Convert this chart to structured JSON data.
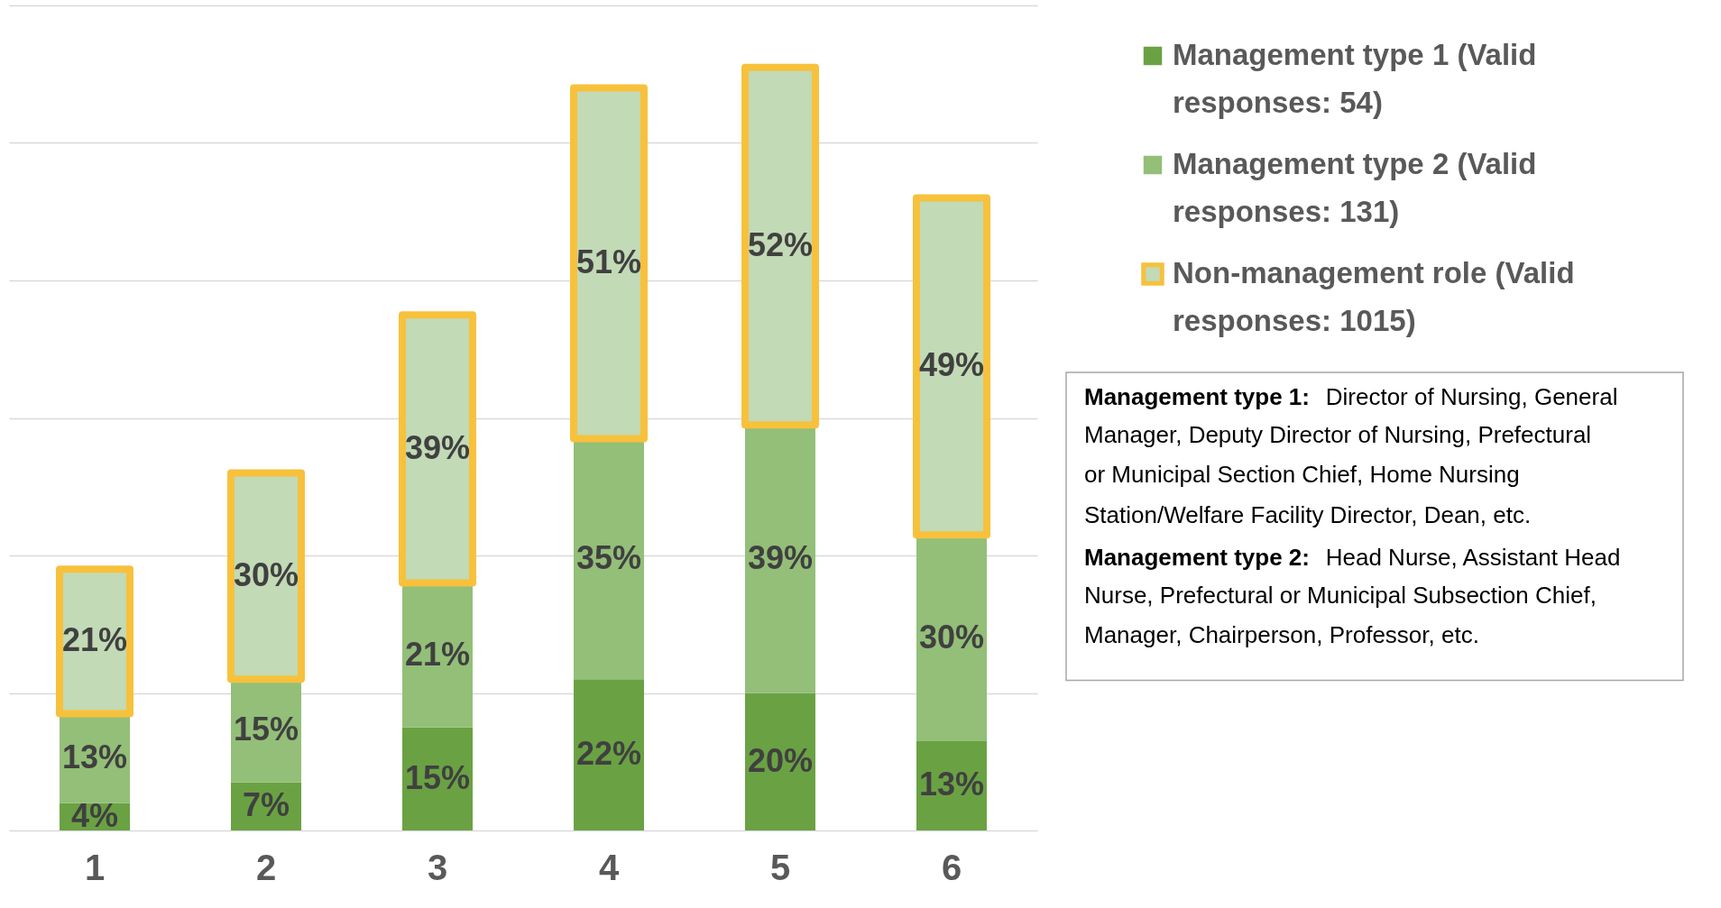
{
  "chart_data": {
    "type": "bar",
    "stacked": true,
    "categories": [
      "1",
      "2",
      "3",
      "4",
      "5",
      "6"
    ],
    "series": [
      {
        "name": "Management type 1 (Valid responses: 54)",
        "color": "#6aa243",
        "values": [
          4,
          7,
          15,
          22,
          20,
          13
        ],
        "value_labels": [
          "4%",
          "7%",
          "15%",
          "22%",
          "20%",
          "13%"
        ]
      },
      {
        "name": "Management type 2 (Valid responses: 131)",
        "color": "#93bf78",
        "values": [
          13,
          15,
          21,
          35,
          39,
          30
        ],
        "value_labels": [
          "13%",
          "15%",
          "21%",
          "35%",
          "39%",
          "30%"
        ]
      },
      {
        "name": "Non-management role (Valid responses: 1015)",
        "color": "#c2dab5",
        "values": [
          21,
          30,
          39,
          51,
          52,
          49
        ],
        "value_labels": [
          "21%",
          "30%",
          "39%",
          "51%",
          "52%",
          "49%"
        ]
      }
    ],
    "tick_labels": "x",
    "grid": "y",
    "legend": "right",
    "annotations": [
      "Management type 1: Director of Nursing, General Manager, Deputy Director of Nursing, Prefectural or Municipal Section Chief, Home Nursing Station/Welfare Facility Director, Dean, etc.",
      "Management type 2: Head Nurse, Assistant Head Nurse, Prefectural or Municipal Subsection Chief, Manager, Chairperson, Professor, etc."
    ]
  }
}
